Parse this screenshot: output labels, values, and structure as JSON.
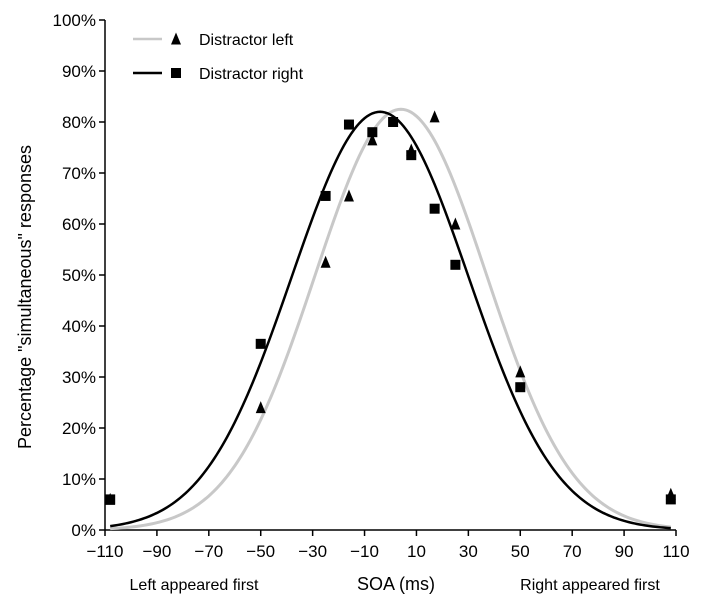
{
  "chart_data": {
    "type": "scatter",
    "xlabel": "SOA (ms)",
    "ylabel": "Percentage \"simultaneous\" responses",
    "xlim": [
      -110,
      110
    ],
    "ylim": [
      0,
      100
    ],
    "x_ticks": [
      -110,
      -90,
      -70,
      -50,
      -30,
      -10,
      10,
      30,
      50,
      70,
      90,
      110
    ],
    "x_tick_labels": [
      "−110",
      "−90",
      "−70",
      "−50",
      "−30",
      "−10",
      "10",
      "30",
      "50",
      "70",
      "90",
      "110"
    ],
    "y_ticks": [
      0,
      10,
      20,
      30,
      40,
      50,
      60,
      70,
      80,
      90,
      100
    ],
    "y_tick_labels": [
      "0%",
      "10%",
      "20%",
      "30%",
      "40%",
      "50%",
      "60%",
      "70%",
      "80%",
      "90%",
      "100%"
    ],
    "annotations": {
      "left": "Left appeared first",
      "right": "Right appeared first"
    },
    "legend_position": "top-left",
    "grid": false,
    "series": [
      {
        "name": "Distractor left",
        "marker": "triangle",
        "curve_color": "#c8c8c8",
        "marker_color": "#000000",
        "points": [
          {
            "x": -108,
            "y": 6
          },
          {
            "x": -50,
            "y": 24
          },
          {
            "x": -25,
            "y": 52.5
          },
          {
            "x": -16,
            "y": 65.5
          },
          {
            "x": -7,
            "y": 76.5
          },
          {
            "x": 8,
            "y": 74.5
          },
          {
            "x": 17,
            "y": 81
          },
          {
            "x": 25,
            "y": 60
          },
          {
            "x": 50,
            "y": 31
          },
          {
            "x": 108,
            "y": 7
          }
        ],
        "fit": {
          "peak": 82.5,
          "center": 4,
          "sigma": 33,
          "baseline": 0
        }
      },
      {
        "name": "Distractor right",
        "marker": "square",
        "curve_color": "#000000",
        "marker_color": "#000000",
        "points": [
          {
            "x": -108,
            "y": 6
          },
          {
            "x": -50,
            "y": 36.5
          },
          {
            "x": -25,
            "y": 65.5
          },
          {
            "x": -16,
            "y": 79.5
          },
          {
            "x": -7,
            "y": 78
          },
          {
            "x": 1,
            "y": 80
          },
          {
            "x": 8,
            "y": 73.5
          },
          {
            "x": 17,
            "y": 63
          },
          {
            "x": 25,
            "y": 52
          },
          {
            "x": 50,
            "y": 28
          },
          {
            "x": 108,
            "y": 6
          }
        ],
        "fit": {
          "peak": 82,
          "center": -4,
          "sigma": 34,
          "baseline": 0
        }
      }
    ]
  }
}
